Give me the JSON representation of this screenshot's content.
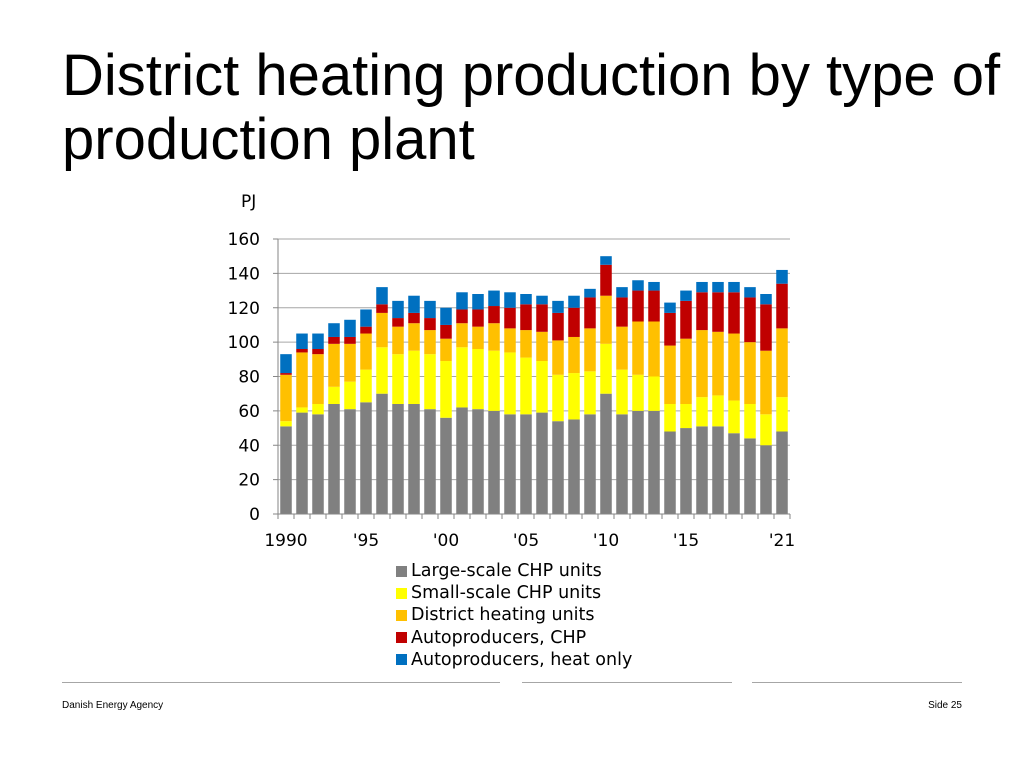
{
  "title": "District heating production by type of production plant",
  "footer": {
    "left": "Danish Energy Agency",
    "right": "Side 25"
  },
  "chart_data": {
    "type": "bar",
    "stacked": true,
    "ylabel": "PJ",
    "xlabel": "",
    "ylim": [
      0,
      160
    ],
    "yticks": [
      0,
      20,
      40,
      60,
      80,
      100,
      120,
      140,
      160
    ],
    "grid": "horizontal",
    "legend_position": "bottom",
    "years": [
      1990,
      1991,
      1992,
      1993,
      1994,
      1995,
      1996,
      1997,
      1998,
      1999,
      2000,
      2001,
      2002,
      2003,
      2004,
      2005,
      2006,
      2007,
      2008,
      2009,
      2010,
      2011,
      2012,
      2013,
      2014,
      2015,
      2016,
      2017,
      2018,
      2019,
      2020,
      2021
    ],
    "tick_labels": [
      {
        "year": 1990,
        "label": "1990"
      },
      {
        "year": 1995,
        "label": "'95"
      },
      {
        "year": 2000,
        "label": "'00"
      },
      {
        "year": 2005,
        "label": "'05"
      },
      {
        "year": 2010,
        "label": "'10"
      },
      {
        "year": 2015,
        "label": "'15"
      },
      {
        "year": 2021,
        "label": "'21"
      }
    ],
    "series": [
      {
        "name": "Large-scale CHP units",
        "color": "#808080",
        "values": [
          51,
          59,
          58,
          64,
          61,
          65,
          70,
          64,
          64,
          61,
          56,
          62,
          61,
          60,
          58,
          58,
          59,
          54,
          55,
          58,
          70,
          58,
          60,
          60,
          48,
          50,
          51,
          51,
          47,
          44,
          40,
          48
        ]
      },
      {
        "name": "Small-scale CHP units",
        "color": "#ffff00",
        "values": [
          3,
          3,
          6,
          10,
          16,
          19,
          27,
          29,
          31,
          32,
          33,
          35,
          35,
          35,
          36,
          33,
          30,
          27,
          27,
          25,
          29,
          26,
          21,
          20,
          16,
          14,
          17,
          18,
          19,
          20,
          18,
          20
        ]
      },
      {
        "name": "District heating units",
        "color": "#ffc000",
        "values": [
          27,
          32,
          29,
          25,
          22,
          21,
          20,
          16,
          16,
          14,
          13,
          14,
          13,
          16,
          14,
          16,
          17,
          20,
          21,
          25,
          28,
          25,
          31,
          32,
          34,
          38,
          39,
          37,
          39,
          36,
          37,
          40
        ]
      },
      {
        "name": "Autoproducers, CHP",
        "color": "#c00000",
        "values": [
          1,
          2,
          3,
          4,
          4,
          4,
          5,
          5,
          6,
          7,
          8,
          8,
          10,
          10,
          12,
          15,
          16,
          16,
          17,
          18,
          18,
          17,
          18,
          18,
          19,
          22,
          22,
          23,
          24,
          26,
          27,
          26
        ]
      },
      {
        "name": "Autoproducers, heat only",
        "color": "#0070c0",
        "values": [
          11,
          9,
          9,
          8,
          10,
          10,
          10,
          10,
          10,
          10,
          10,
          10,
          9,
          9,
          9,
          6,
          5,
          7,
          7,
          5,
          5,
          6,
          6,
          5,
          6,
          6,
          6,
          6,
          6,
          6,
          6,
          8
        ]
      }
    ]
  }
}
